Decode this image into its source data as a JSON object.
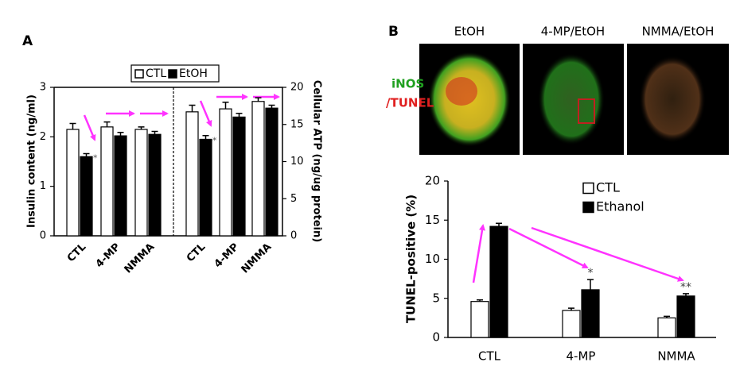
{
  "chart_data": [
    {
      "type": "bar",
      "title": "A",
      "ylabel": "Insulin content (ng/ml)",
      "categories": [
        "CTL",
        "4-MP",
        "NMMA"
      ],
      "ylim": [
        0,
        3
      ],
      "yticks": [
        0,
        1,
        2,
        3
      ],
      "series": [
        {
          "name": "CTL",
          "color": "#ffffff",
          "values": [
            2.15,
            2.2,
            2.15
          ],
          "errors": [
            0.12,
            0.1,
            0.05
          ]
        },
        {
          "name": "EtOH",
          "color": "#000000",
          "values": [
            1.6,
            2.02,
            2.05
          ],
          "errors": [
            0.06,
            0.07,
            0.06
          ],
          "significance": [
            "*",
            null,
            null
          ]
        }
      ]
    },
    {
      "type": "bar",
      "y2label": "Cellular ATP (ng/ug protein)",
      "categories": [
        "CTL",
        "4-MP",
        "NMMA"
      ],
      "y2lim": [
        0,
        20
      ],
      "y2ticks": [
        0,
        5,
        10,
        15,
        20
      ],
      "series": [
        {
          "color": "#ffffff",
          "axis": "y2",
          "values": [
            16.7,
            17.1,
            18.1
          ],
          "errors": [
            0.9,
            0.9,
            0.5
          ]
        },
        {
          "color": "#000000",
          "axis": "y2",
          "values": [
            13.0,
            16.0,
            17.2
          ],
          "errors": [
            0.5,
            0.5,
            0.4
          ],
          "significance": [
            "*",
            null,
            null
          ]
        }
      ]
    },
    {
      "type": "bar",
      "title": "B",
      "ylabel": "TUNEL-positive (%)",
      "categories": [
        "CTL",
        "4-MP",
        "NMMA"
      ],
      "ylim": [
        0,
        20
      ],
      "yticks": [
        0,
        5,
        10,
        15,
        20
      ],
      "series": [
        {
          "name": "CTL",
          "color": "#ffffff",
          "values": [
            4.6,
            3.45,
            2.5
          ],
          "errors": [
            0.2,
            0.3,
            0.2
          ]
        },
        {
          "name": "Ethanol",
          "color": "#000000",
          "values": [
            14.2,
            6.1,
            5.3
          ],
          "errors": [
            0.4,
            1.3,
            0.3
          ],
          "significance": [
            null,
            "*",
            "**"
          ]
        }
      ]
    }
  ],
  "micrographs": {
    "column_titles": [
      "EtOH",
      "4-MP/EtOH",
      "NMMA/EtOH"
    ],
    "stain_labels": [
      "iNOS",
      "/TUNEL"
    ]
  }
}
